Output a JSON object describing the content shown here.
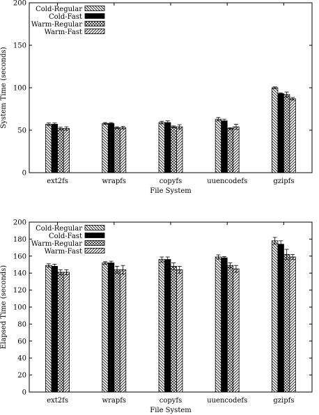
{
  "chart_data": [
    {
      "type": "bar",
      "categories": [
        "ext2fs",
        "wrapfs",
        "copyfs",
        "uuencodefs",
        "gzipfs"
      ],
      "xlabel": "File System",
      "ylabel": "System Time (seconds)",
      "ylim": [
        0,
        200
      ],
      "yticks": [
        "0",
        "50",
        "100",
        "150",
        "200"
      ],
      "legend_position": "top-left",
      "series": [
        {
          "name": "Cold-Regular",
          "pattern": "diag-back",
          "values": [
            57,
            58,
            59,
            63,
            100
          ],
          "errors": [
            1.5,
            1,
            1.5,
            2,
            1
          ]
        },
        {
          "name": "Cold-Fast",
          "pattern": "solid",
          "values": [
            57,
            58,
            59,
            61,
            93
          ],
          "errors": [
            1.5,
            1,
            2,
            2,
            1
          ]
        },
        {
          "name": "Warm-Regular",
          "pattern": "cross",
          "values": [
            52,
            53,
            54,
            52,
            92
          ],
          "errors": [
            1.5,
            1,
            1,
            1,
            3
          ]
        },
        {
          "name": "Warm-Fast",
          "pattern": "diag-fwd",
          "values": [
            52,
            53,
            54,
            54,
            87
          ],
          "errors": [
            2,
            1.5,
            2.5,
            3,
            1.5
          ]
        }
      ]
    },
    {
      "type": "bar",
      "categories": [
        "ext2fs",
        "wrapfs",
        "copyfs",
        "uuencodefs",
        "gzipfs"
      ],
      "xlabel": "File System",
      "ylabel": "Elapsed Time (seconds)",
      "ylim": [
        0,
        200
      ],
      "yticks": [
        "0",
        "20",
        "40",
        "60",
        "80",
        "100",
        "120",
        "140",
        "160",
        "180",
        "200"
      ],
      "legend_position": "top-left",
      "series": [
        {
          "name": "Cold-Regular",
          "pattern": "diag-back",
          "values": [
            149,
            152,
            156,
            159,
            178
          ],
          "errors": [
            2,
            1.5,
            3,
            2.5,
            4
          ]
        },
        {
          "name": "Cold-Fast",
          "pattern": "solid",
          "values": [
            148,
            152,
            156,
            158,
            174
          ],
          "errors": [
            2.5,
            2,
            3,
            1.5,
            4
          ]
        },
        {
          "name": "Warm-Regular",
          "pattern": "cross",
          "values": [
            141,
            144,
            148,
            149,
            162
          ],
          "errors": [
            3,
            4,
            4,
            3,
            6
          ]
        },
        {
          "name": "Warm-Fast",
          "pattern": "diag-fwd",
          "values": [
            141,
            144,
            144,
            145,
            159
          ],
          "errors": [
            3,
            5,
            4,
            4,
            3
          ]
        }
      ]
    }
  ]
}
